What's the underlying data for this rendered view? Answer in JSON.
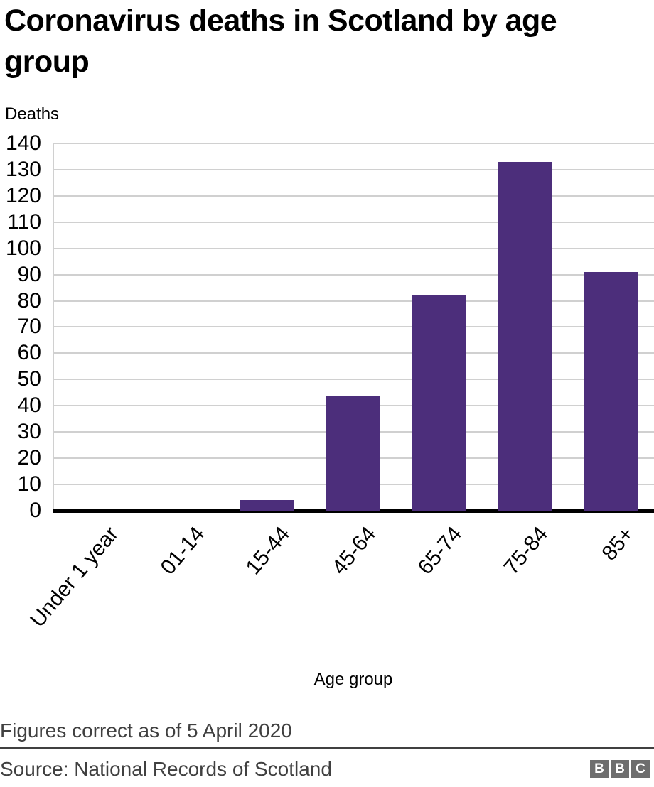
{
  "title": "Coronavirus deaths in Scotland by age group",
  "chart_data": {
    "type": "bar",
    "title": "Coronavirus deaths in Scotland by age group",
    "categories": [
      "Under 1 year",
      "01-14",
      "15-44",
      "45-64",
      "65-74",
      "75-84",
      "85+"
    ],
    "values": [
      0,
      0,
      4,
      44,
      82,
      133,
      91
    ],
    "xlabel": "Age group",
    "ylabel": "Deaths",
    "ylim": [
      0,
      140
    ],
    "ytick_step": 10,
    "grid": true,
    "legend": false,
    "bar_color": "#4c2e7b"
  },
  "footer": {
    "note": "Figures correct as of 5 April 2020",
    "source": "Source: National Records of Scotland"
  },
  "logo": {
    "letters": [
      "B",
      "B",
      "C"
    ]
  },
  "colors": {
    "bar": "#4c2e7b",
    "gridline": "#d0d0d0",
    "axis": "#000000",
    "footer_text": "#404040",
    "divider": "#404040",
    "logo_square": "#6e6e6e",
    "logo_letter": "#ffffff"
  }
}
